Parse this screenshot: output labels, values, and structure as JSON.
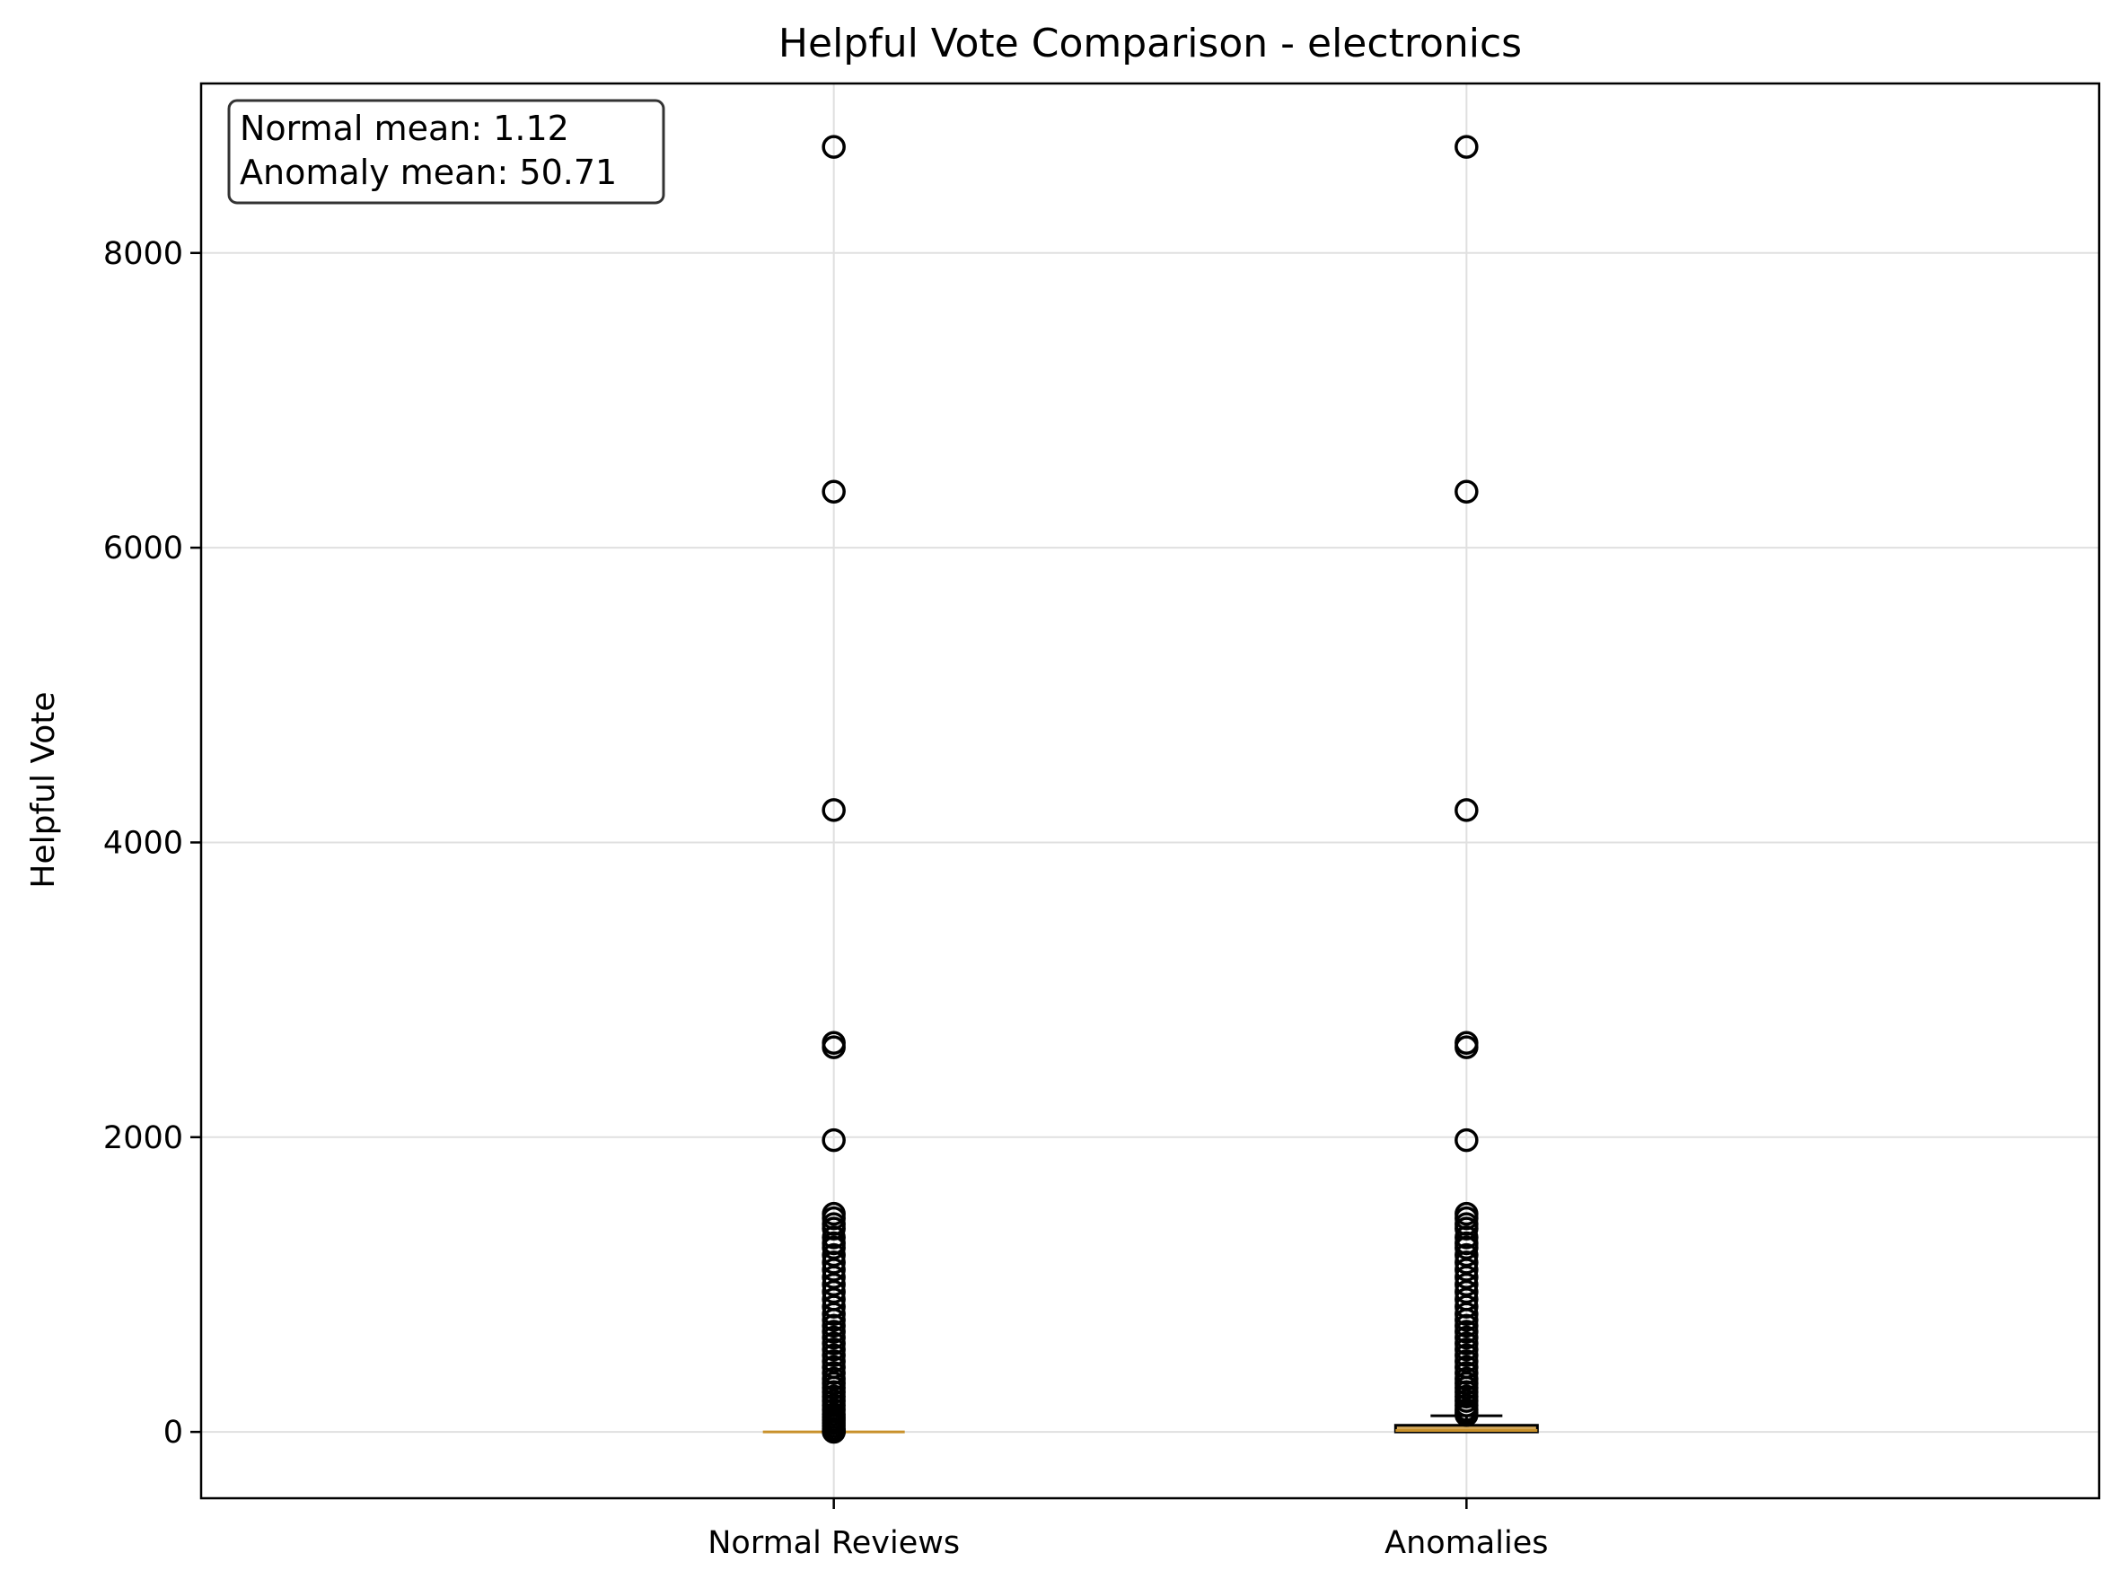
{
  "chart_data": {
    "type": "box",
    "title": "Helpful Vote Comparison - electronics",
    "xlabel": "",
    "ylabel": "Helpful Vote",
    "ylim": [
      -450,
      9150
    ],
    "yticks": [
      0,
      2000,
      4000,
      6000,
      8000
    ],
    "grid": true,
    "categories": [
      "Normal Reviews",
      "Anomalies"
    ],
    "annotation": {
      "lines": [
        "Normal mean: 1.12",
        "Anomaly mean: 50.71"
      ],
      "placement": "top-left"
    },
    "colors": {
      "box_fill": "#d4a85a",
      "median": "#c8902a",
      "grid": "#e0e0e0"
    },
    "boxes": [
      {
        "name": "Normal Reviews",
        "q1": 0,
        "median": 0,
        "q3": 0,
        "whisker_low": 0,
        "whisker_high": 0,
        "fliers": [
          8720,
          6380,
          4220,
          2640,
          2610,
          1980,
          1480,
          1450,
          1410,
          1380,
          1320,
          1280,
          1250,
          1200,
          1150,
          1100,
          1050,
          1000,
          950,
          900,
          850,
          800,
          760,
          720,
          680,
          640,
          600,
          560,
          520,
          480,
          440,
          400,
          360,
          330,
          300,
          270,
          240,
          210,
          180,
          150,
          120,
          100,
          80,
          60,
          40,
          20,
          10,
          5,
          3,
          2,
          1
        ]
      },
      {
        "name": "Anomalies",
        "q1": 0,
        "median": 10,
        "q3": 45,
        "whisker_low": 0,
        "whisker_high": 110,
        "fliers": [
          8720,
          6380,
          4220,
          2640,
          2610,
          1980,
          1480,
          1450,
          1410,
          1380,
          1320,
          1280,
          1250,
          1200,
          1150,
          1100,
          1050,
          1000,
          950,
          900,
          850,
          800,
          760,
          720,
          680,
          640,
          600,
          560,
          520,
          480,
          440,
          400,
          360,
          330,
          300,
          270,
          240,
          210,
          180,
          150,
          130,
          115
        ]
      }
    ]
  }
}
